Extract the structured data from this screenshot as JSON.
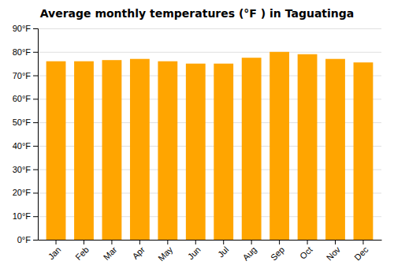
{
  "chart_data": {
    "type": "bar",
    "title": "Average monthly temperatures (°F ) in Taguatinga",
    "categories": [
      "Jan",
      "Feb",
      "Mar",
      "Apr",
      "May",
      "Jun",
      "Jul",
      "Aug",
      "Sep",
      "Oct",
      "Nov",
      "Dec"
    ],
    "values": [
      76,
      76,
      76.5,
      77,
      76,
      75,
      75,
      77.5,
      80,
      79,
      77,
      75.5
    ],
    "color": "#FFA500",
    "ylim": [
      0,
      90
    ],
    "yticks": [
      {
        "value": 0,
        "label": "0°F"
      },
      {
        "value": 10,
        "label": "10°F"
      },
      {
        "value": 20,
        "label": "20°F"
      },
      {
        "value": 30,
        "label": "30°F"
      },
      {
        "value": 40,
        "label": "40°F"
      },
      {
        "value": 50,
        "label": "50°F"
      },
      {
        "value": 60,
        "label": "60°F"
      },
      {
        "value": 70,
        "label": "70°F"
      },
      {
        "value": 80,
        "label": "80°F"
      },
      {
        "value": 90,
        "label": "90°F"
      }
    ],
    "grid": true
  }
}
